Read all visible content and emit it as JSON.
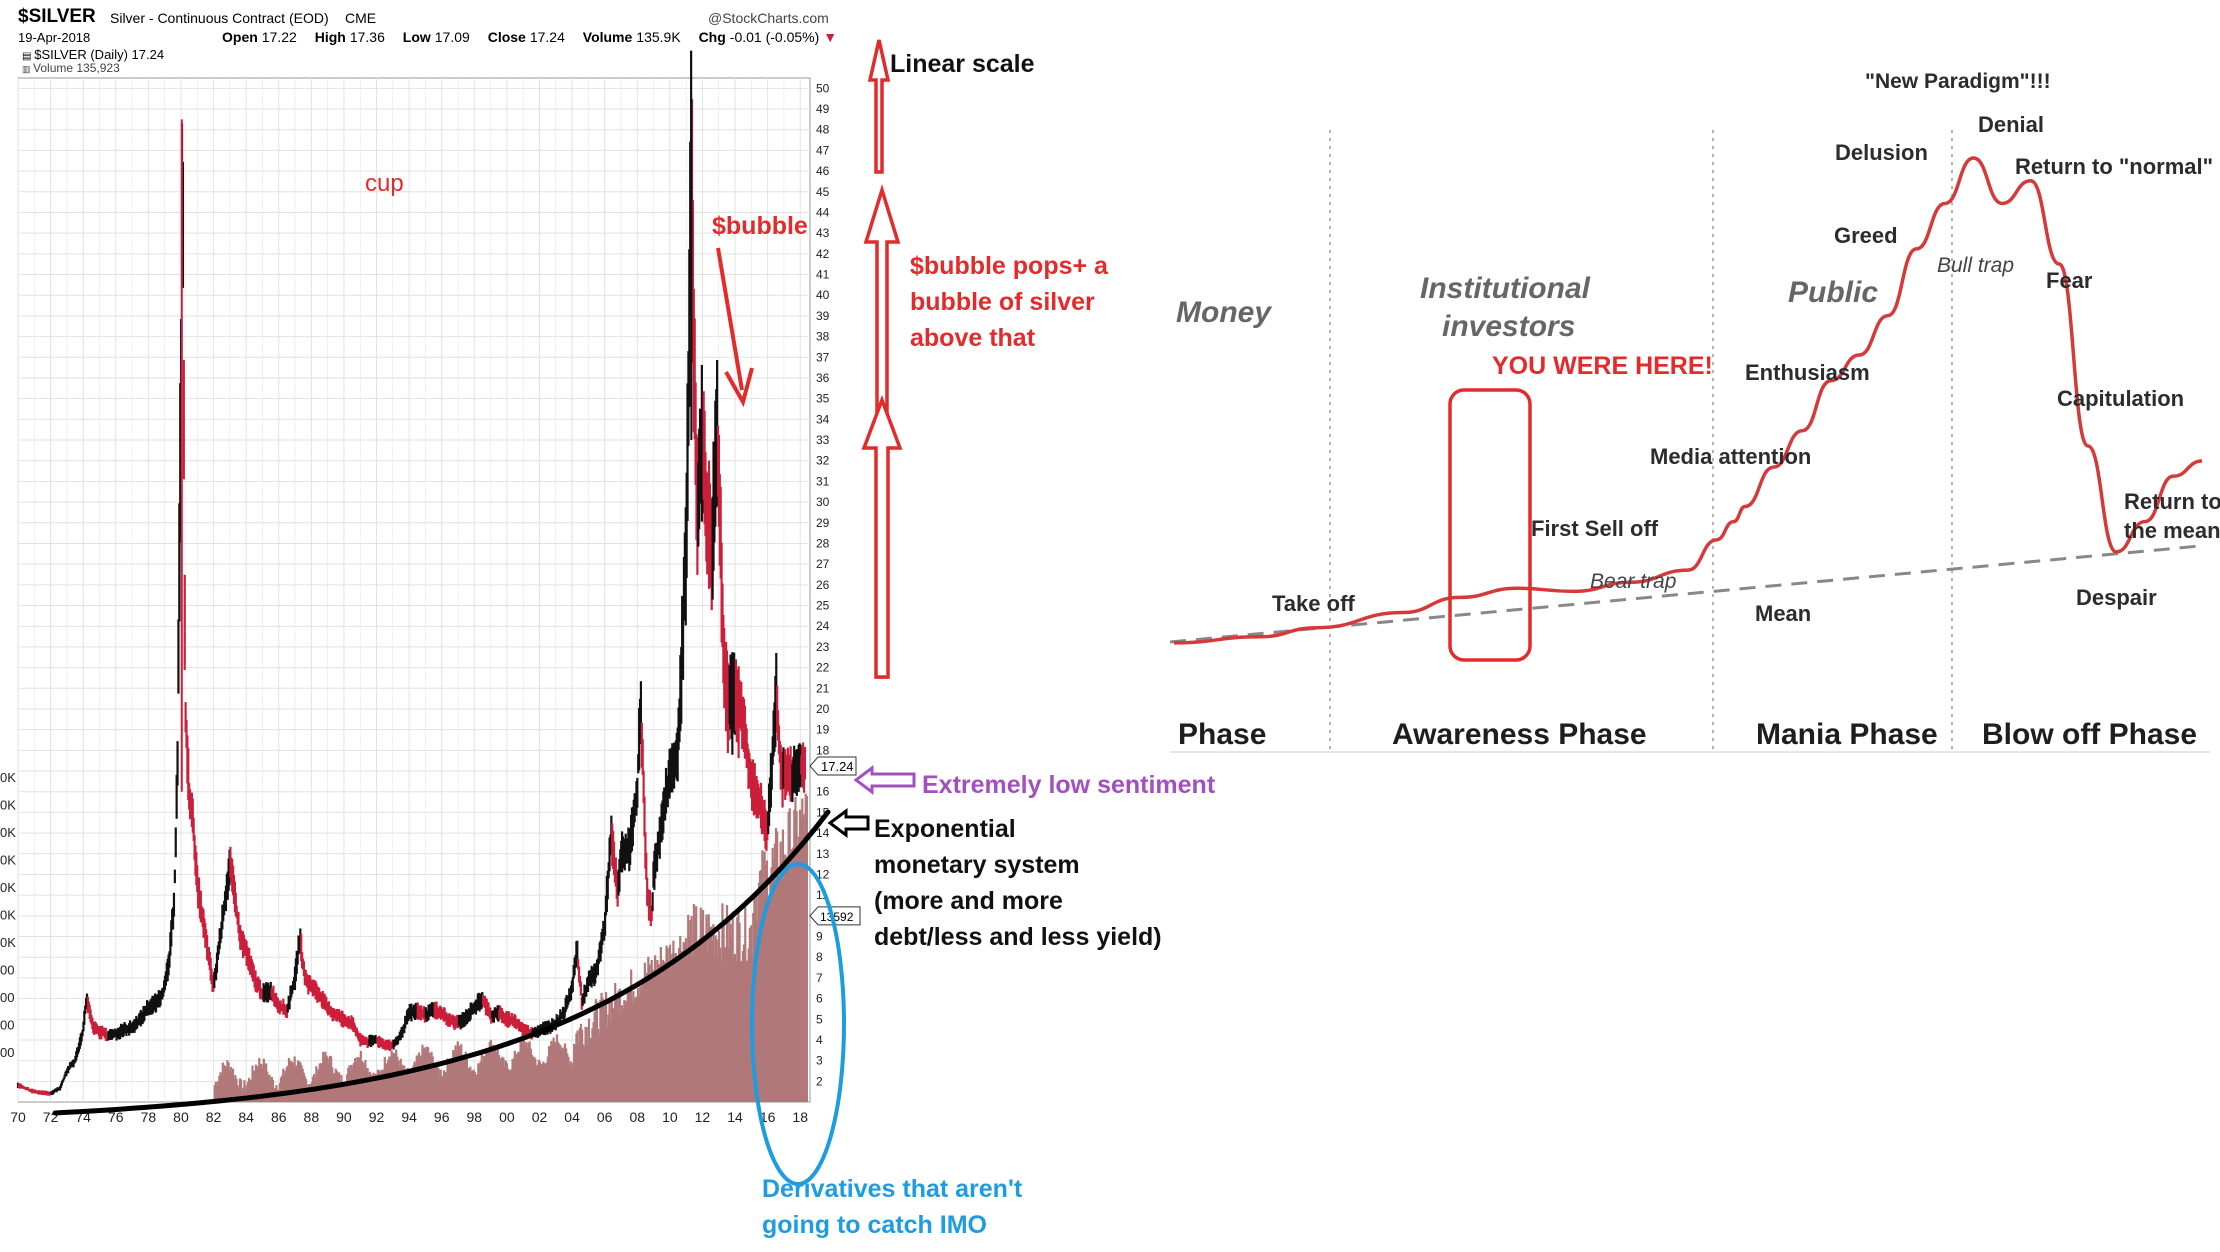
{
  "header": {
    "symbol": "$SILVER",
    "description": "Silver - Continuous Contract (EOD)",
    "exchange": "CME",
    "brand": "@StockCharts.com",
    "date": "19-Apr-2018",
    "open_label": "Open",
    "open": "17.22",
    "high_label": "High",
    "high": "17.36",
    "low_label": "Low",
    "low": "17.09",
    "close_label": "Close",
    "close": "17.24",
    "volume_label": "Volume",
    "volume": "135.9K",
    "chg_label": "Chg",
    "chg": "-0.01 (-0.05%)",
    "legend_price": "$SILVER (Daily) 17.24",
    "legend_volume": "Volume 135,923"
  },
  "colors": {
    "price_up": "#111111",
    "price_down": "#cc1f3a",
    "volume_bar": "#b07878",
    "grid": "#e2e2e2",
    "annotation_red": "#e22b2b",
    "annotation_purple": "#a24fc0",
    "annotation_blue": "#1f9be0",
    "cycle_curve": "#d43a3a"
  },
  "chart_data": [
    {
      "type": "line",
      "title": "$SILVER Silver - Continuous Contract (EOD)",
      "y_scale": "linear",
      "ylim": [
        1,
        50
      ],
      "y_ticks": [
        2,
        3,
        4,
        5,
        6,
        7,
        8,
        9,
        10,
        11,
        12,
        13,
        14,
        15,
        16,
        17,
        18,
        19,
        20,
        21,
        22,
        23,
        24,
        25,
        26,
        27,
        28,
        29,
        30,
        31,
        32,
        33,
        34,
        35,
        36,
        37,
        38,
        39,
        40,
        41,
        42,
        43,
        44,
        45,
        46,
        47,
        48,
        49,
        50
      ],
      "x_tick_labels": [
        "70",
        "72",
        "74",
        "76",
        "78",
        "80",
        "82",
        "84",
        "86",
        "88",
        "90",
        "92",
        "94",
        "96",
        "98",
        "00",
        "02",
        "04",
        "06",
        "08",
        "10",
        "12",
        "14",
        "16",
        "18"
      ],
      "x_years": [
        1970,
        1972,
        1974,
        1976,
        1978,
        1980,
        1982,
        1984,
        1986,
        1988,
        1990,
        1992,
        1994,
        1996,
        1998,
        2000,
        2002,
        2004,
        2006,
        2008,
        2010,
        2012,
        2014,
        2016,
        2018
      ],
      "last_price_tag": "17.24",
      "volume_tag": "13592",
      "left_volume_tick_labels": [
        "0K",
        "0K",
        "0K",
        "0K",
        "0K",
        "0K",
        "0K",
        "00",
        "00",
        "00",
        "00"
      ],
      "series": [
        {
          "name": "$SILVER (Daily)",
          "x": [
            1970.0,
            1971.0,
            1972.0,
            1972.6,
            1973.0,
            1973.5,
            1974.0,
            1974.2,
            1974.6,
            1975.0,
            1975.5,
            1976.0,
            1976.5,
            1977.0,
            1977.5,
            1978.0,
            1978.5,
            1979.0,
            1979.3,
            1979.6,
            1979.8,
            1980.0,
            1980.1,
            1980.25,
            1980.5,
            1980.8,
            1981.0,
            1981.5,
            1982.0,
            1982.5,
            1983.0,
            1983.3,
            1983.6,
            1984.0,
            1984.5,
            1985.0,
            1985.5,
            1986.0,
            1986.5,
            1987.0,
            1987.3,
            1987.6,
            1988.0,
            1988.5,
            1989.0,
            1989.5,
            1990.0,
            1990.5,
            1991.0,
            1991.5,
            1992.0,
            1992.5,
            1993.0,
            1993.5,
            1994.0,
            1994.5,
            1995.0,
            1995.5,
            1996.0,
            1996.5,
            1997.0,
            1997.5,
            1998.0,
            1998.5,
            1999.0,
            1999.5,
            2000.0,
            2000.5,
            2001.0,
            2001.5,
            2002.0,
            2002.5,
            2003.0,
            2003.5,
            2004.0,
            2004.3,
            2004.6,
            2005.0,
            2005.5,
            2006.0,
            2006.4,
            2006.8,
            2007.0,
            2007.5,
            2008.0,
            2008.2,
            2008.6,
            2008.9,
            2009.0,
            2009.5,
            2010.0,
            2010.5,
            2011.0,
            2011.2,
            2011.32,
            2011.5,
            2011.7,
            2012.0,
            2012.3,
            2012.6,
            2012.9,
            2013.0,
            2013.3,
            2013.6,
            2014.0,
            2014.5,
            2015.0,
            2015.5,
            2015.9,
            2016.0,
            2016.5,
            2016.9,
            2017.0,
            2017.5,
            2018.0,
            2018.3
          ],
          "y": [
            1.8,
            1.5,
            1.4,
            1.7,
            2.5,
            3.0,
            4.5,
            6.0,
            4.6,
            4.4,
            4.2,
            4.3,
            4.5,
            4.6,
            5.0,
            5.6,
            5.8,
            6.5,
            8.0,
            11.0,
            18.0,
            36.0,
            48.0,
            20.0,
            16.0,
            14.0,
            11.5,
            9.0,
            6.5,
            9.5,
            12.5,
            11.0,
            9.0,
            8.3,
            7.0,
            6.2,
            6.4,
            5.7,
            5.4,
            7.0,
            9.0,
            6.9,
            6.6,
            6.2,
            5.5,
            5.2,
            5.0,
            4.8,
            4.0,
            3.9,
            4.0,
            3.8,
            3.7,
            4.2,
            5.3,
            5.4,
            5.2,
            5.5,
            5.3,
            4.9,
            4.8,
            5.1,
            5.6,
            6.0,
            5.2,
            5.3,
            5.0,
            4.9,
            4.5,
            4.3,
            4.5,
            4.6,
            4.8,
            5.3,
            6.6,
            8.3,
            5.8,
            6.8,
            7.3,
            9.5,
            14.0,
            11.0,
            13.0,
            13.2,
            16.0,
            20.5,
            11.0,
            10.0,
            12.0,
            14.5,
            17.0,
            18.0,
            28.0,
            38.0,
            48.0,
            36.0,
            30.0,
            33.0,
            29.0,
            28.0,
            34.0,
            31.0,
            23.0,
            20.0,
            20.5,
            19.5,
            16.5,
            15.5,
            14.2,
            14.0,
            20.5,
            16.5,
            17.0,
            16.8,
            17.3,
            17.24
          ]
        }
      ]
    },
    {
      "type": "line",
      "title": "",
      "phases": [
        "Phase",
        "Awareness Phase",
        "Mania Phase",
        "Blow off Phase"
      ],
      "participants": [
        "Money",
        "Institutional investors",
        "Public"
      ],
      "series": [
        {
          "name": "",
          "x": [
            0,
            3,
            5,
            8,
            10,
            12,
            14,
            16,
            18,
            19,
            19.6,
            20,
            21,
            22,
            23,
            24,
            25,
            26,
            27,
            28,
            29,
            30,
            31,
            32,
            33,
            34,
            35,
            36
          ],
          "y": [
            10,
            14,
            20,
            30,
            40,
            46,
            44,
            50,
            58,
            78,
            90,
            100,
            126,
            150,
            183,
            200,
            226,
            270,
            300,
            330,
            300,
            315,
            260,
            140,
            70,
            90,
            120,
            130
          ]
        }
      ],
      "labels": {
        "stealth_partial": "Money",
        "institutional": "Institutional investors",
        "public": "Public",
        "take_off": "Take off",
        "first_sell_off": "First Sell off",
        "bear_trap": "Bear trap",
        "media_attention": "Media attention",
        "enthusiasm": "Enthusiasm",
        "greed": "Greed",
        "delusion": "Delusion",
        "new_paradigm": "\"New Paradigm\"!!!",
        "denial": "Denial",
        "return_to_normal": "Return to \"normal\"",
        "bull_trap": "Bull trap",
        "fear": "Fear",
        "capitulation": "Capitulation",
        "return_to_mean_1": "Return to",
        "return_to_mean_2": "the mean",
        "despair": "Despair",
        "mean": "Mean",
        "you_were_here": "YOU WERE HERE!"
      }
    }
  ],
  "annotations": {
    "cup": "cup",
    "bubble": "$bubble",
    "linear_scale": "Linear scale",
    "bubble_pops_1": "$bubble pops+ a",
    "bubble_pops_2": "bubble of silver",
    "bubble_pops_3": "above that",
    "sentiment": "Extremely low sentiment",
    "exp_1": "Exponential",
    "exp_2": "monetary system",
    "exp_3": "(more and more",
    "exp_4": "debt/less and less yield)",
    "deriv_1": "Derivatives that aren't",
    "deriv_2": "going to catch IMO"
  }
}
